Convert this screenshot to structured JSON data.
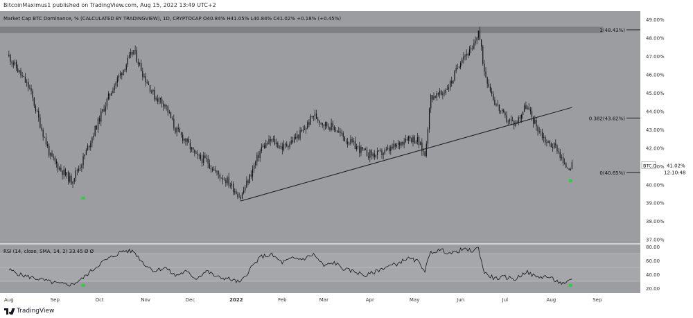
{
  "header": {
    "published_text": "BitcoinMaximus1 published on TradingView.com, Aug 15, 2022 13:49 UTC+2"
  },
  "footer": {
    "brand": "TradingView"
  },
  "colors": {
    "pane_bg": "#9c9da1",
    "axis_bg": "#ffffff",
    "candle": "#111111",
    "highlight_band": "#7e8084",
    "rsi_band": "#a6a7ab",
    "marker": "#2ecc40",
    "line": "#1c1c1c"
  },
  "chart_data": [
    {
      "type": "candlestick",
      "title": "Market Cap BTC Dominance, % (CALCULATED BY TRADINGVIEW), 1D, CRYPTOCAP",
      "ohlc_readout": {
        "O": "40.84%",
        "H": "41.05%",
        "L": "40.84%",
        "C": "41.02%",
        "change": "+0.18% (+0.45%)"
      },
      "x_tick_labels": [
        "Aug",
        "Sep",
        "Oct",
        "Nov",
        "Dec",
        "2022",
        "Feb",
        "Mar",
        "Apr",
        "May",
        "Jun",
        "Jul",
        "Aug",
        "Sep"
      ],
      "y_tick_labels": [
        "49.00%",
        "48.00%",
        "47.00%",
        "46.00%",
        "45.00%",
        "44.00%",
        "43.00%",
        "42.00%",
        "41.00%",
        "40.00%",
        "39.00%",
        "38.00%",
        "37.00%"
      ],
      "ylim": [
        36.8,
        49.3
      ],
      "series_label": "BTC.D",
      "last_value": "41.02%",
      "countdown": "12:10:48",
      "close_path": [
        [
          "2021-08-01",
          47.0
        ],
        [
          "2021-08-08",
          46.1
        ],
        [
          "2021-08-15",
          45.2
        ],
        [
          "2021-08-22",
          43.3
        ],
        [
          "2021-08-29",
          41.5
        ],
        [
          "2021-09-05",
          40.8
        ],
        [
          "2021-09-12",
          40.2
        ],
        [
          "2021-09-19",
          41.2
        ],
        [
          "2021-09-26",
          42.6
        ],
        [
          "2021-10-03",
          44.0
        ],
        [
          "2021-10-10",
          45.3
        ],
        [
          "2021-10-17",
          46.3
        ],
        [
          "2021-10-24",
          47.3
        ],
        [
          "2021-10-31",
          45.9
        ],
        [
          "2021-11-07",
          44.8
        ],
        [
          "2021-11-14",
          44.4
        ],
        [
          "2021-11-21",
          43.0
        ],
        [
          "2021-11-28",
          42.4
        ],
        [
          "2021-12-05",
          41.5
        ],
        [
          "2021-12-12",
          41.3
        ],
        [
          "2021-12-19",
          40.6
        ],
        [
          "2021-12-26",
          40.2
        ],
        [
          "2022-01-04",
          39.3
        ],
        [
          "2022-01-11",
          40.6
        ],
        [
          "2022-01-18",
          42.0
        ],
        [
          "2022-01-25",
          42.4
        ],
        [
          "2022-02-01",
          42.0
        ],
        [
          "2022-02-08",
          42.4
        ],
        [
          "2022-02-15",
          42.9
        ],
        [
          "2022-02-22",
          43.8
        ],
        [
          "2022-03-01",
          43.3
        ],
        [
          "2022-03-08",
          43.1
        ],
        [
          "2022-03-15",
          42.5
        ],
        [
          "2022-03-22",
          42.1
        ],
        [
          "2022-03-29",
          41.7
        ],
        [
          "2022-04-05",
          41.6
        ],
        [
          "2022-04-12",
          41.8
        ],
        [
          "2022-04-19",
          42.1
        ],
        [
          "2022-04-26",
          42.6
        ],
        [
          "2022-05-03",
          42.4
        ],
        [
          "2022-05-08",
          41.6
        ],
        [
          "2022-05-12",
          44.8
        ],
        [
          "2022-05-19",
          44.9
        ],
        [
          "2022-05-26",
          45.6
        ],
        [
          "2022-06-02",
          47.0
        ],
        [
          "2022-06-09",
          47.3
        ],
        [
          "2022-06-13",
          48.4
        ],
        [
          "2022-06-17",
          46.2
        ],
        [
          "2022-06-24",
          44.5
        ],
        [
          "2022-07-01",
          43.6
        ],
        [
          "2022-07-08",
          43.3
        ],
        [
          "2022-07-15",
          44.3
        ],
        [
          "2022-07-22",
          43.2
        ],
        [
          "2022-07-29",
          42.3
        ],
        [
          "2022-08-05",
          42.0
        ],
        [
          "2022-08-10",
          41.0
        ],
        [
          "2022-08-15",
          41.0
        ]
      ],
      "annotations": {
        "band": {
          "from": 48.25,
          "to": 48.6
        },
        "fib_levels": [
          {
            "label": "1(48.43%)",
            "value": 48.43
          },
          {
            "label": "0.382(43.62%)",
            "value": 43.62
          },
          {
            "label": "0(40.65%)",
            "value": 40.65
          }
        ],
        "trendline": {
          "from": [
            "2022-01-04",
            39.1
          ],
          "to": [
            "2022-08-15",
            44.2
          ]
        },
        "marker_dates": [
          "2021-09-20",
          "2022-08-14"
        ]
      }
    },
    {
      "type": "line",
      "title": "RSI (14, close, SMA, 14, 2)",
      "readout": "33.45",
      "readout_extra": [
        "Ø",
        "Ø"
      ],
      "y_tick_labels": [
        "80.00",
        "60.00",
        "40.00",
        "20.00"
      ],
      "ylim": [
        15,
        82
      ],
      "band": [
        30,
        70
      ],
      "midline": 50,
      "rsi_path": [
        [
          "2021-08-01",
          47
        ],
        [
          "2021-08-08",
          40
        ],
        [
          "2021-08-15",
          36
        ],
        [
          "2021-08-22",
          33
        ],
        [
          "2021-08-29",
          29
        ],
        [
          "2021-09-05",
          26
        ],
        [
          "2021-09-12",
          25
        ],
        [
          "2021-09-19",
          33
        ],
        [
          "2021-09-26",
          46
        ],
        [
          "2021-10-03",
          58
        ],
        [
          "2021-10-10",
          66
        ],
        [
          "2021-10-17",
          74
        ],
        [
          "2021-10-24",
          73
        ],
        [
          "2021-10-31",
          55
        ],
        [
          "2021-11-07",
          45
        ],
        [
          "2021-11-14",
          50
        ],
        [
          "2021-11-21",
          38
        ],
        [
          "2021-11-28",
          44
        ],
        [
          "2021-12-05",
          34
        ],
        [
          "2021-12-12",
          45
        ],
        [
          "2021-12-19",
          36
        ],
        [
          "2021-12-26",
          34
        ],
        [
          "2022-01-04",
          28
        ],
        [
          "2022-01-11",
          50
        ],
        [
          "2022-01-18",
          66
        ],
        [
          "2022-01-25",
          68
        ],
        [
          "2022-02-01",
          57
        ],
        [
          "2022-02-08",
          63
        ],
        [
          "2022-02-15",
          62
        ],
        [
          "2022-02-22",
          69
        ],
        [
          "2022-03-01",
          52
        ],
        [
          "2022-03-08",
          57
        ],
        [
          "2022-03-15",
          47
        ],
        [
          "2022-03-22",
          44
        ],
        [
          "2022-03-29",
          38
        ],
        [
          "2022-04-05",
          44
        ],
        [
          "2022-04-12",
          51
        ],
        [
          "2022-04-19",
          55
        ],
        [
          "2022-04-26",
          63
        ],
        [
          "2022-05-03",
          59
        ],
        [
          "2022-05-08",
          46
        ],
        [
          "2022-05-12",
          72
        ],
        [
          "2022-05-19",
          75
        ],
        [
          "2022-05-26",
          70
        ],
        [
          "2022-06-02",
          76
        ],
        [
          "2022-06-09",
          74
        ],
        [
          "2022-06-13",
          78
        ],
        [
          "2022-06-17",
          42
        ],
        [
          "2022-06-24",
          34
        ],
        [
          "2022-07-01",
          36
        ],
        [
          "2022-07-08",
          33
        ],
        [
          "2022-07-15",
          44
        ],
        [
          "2022-07-22",
          36
        ],
        [
          "2022-07-29",
          37
        ],
        [
          "2022-08-05",
          30
        ],
        [
          "2022-08-10",
          25
        ],
        [
          "2022-08-15",
          33
        ]
      ],
      "marker_dates": [
        "2021-09-20",
        "2022-08-14"
      ]
    }
  ]
}
